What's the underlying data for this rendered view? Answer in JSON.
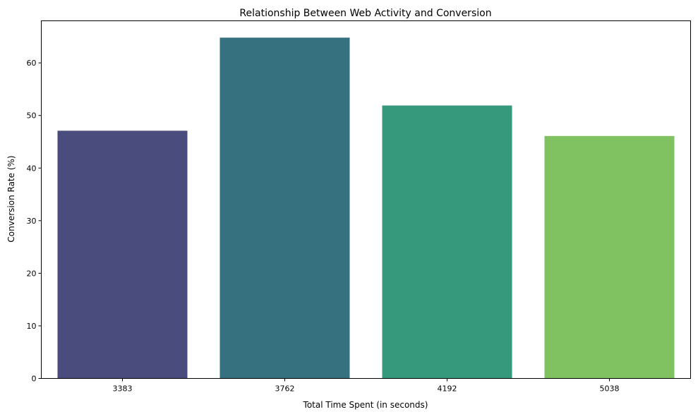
{
  "chart_data": {
    "type": "bar",
    "title": "Relationship Between Web Activity and Conversion",
    "xlabel": "Total Time Spent (in seconds)",
    "ylabel": "Conversion Rate (%)",
    "categories": [
      "3383",
      "3762",
      "4192",
      "5038"
    ],
    "values": [
      47.1,
      64.8,
      51.9,
      46.1
    ],
    "colors": [
      "#4a4c7d",
      "#36717f",
      "#36997b",
      "#80c261"
    ],
    "ylim": [
      0,
      68
    ],
    "yticks": [
      0,
      10,
      20,
      30,
      40,
      50,
      60
    ],
    "grid": false,
    "legend": "none"
  }
}
